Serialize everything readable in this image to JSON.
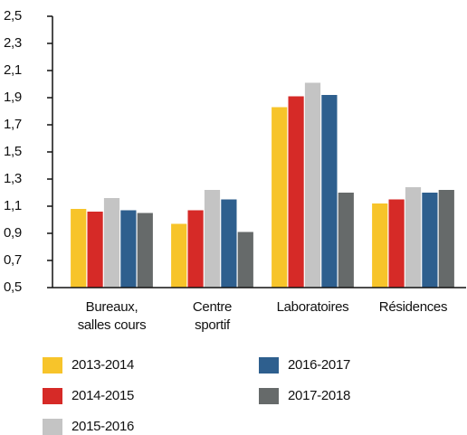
{
  "chart_data": {
    "type": "bar",
    "categories": [
      [
        "Bureaux,",
        "salles cours"
      ],
      [
        "Centre",
        "sportif"
      ],
      [
        "Laboratoires"
      ],
      [
        "Résidences"
      ]
    ],
    "series": [
      {
        "name": "2013-2014",
        "color": "#f7c42a",
        "values": [
          1.08,
          0.97,
          1.83,
          1.12
        ]
      },
      {
        "name": "2014-2015",
        "color": "#d62a27",
        "values": [
          1.06,
          1.07,
          1.91,
          1.15
        ]
      },
      {
        "name": "2015-2016",
        "color": "#c4c4c4",
        "values": [
          1.16,
          1.22,
          2.01,
          1.24
        ]
      },
      {
        "name": "2016-2017",
        "color": "#2e5f8e",
        "values": [
          1.07,
          1.15,
          1.92,
          1.2
        ]
      },
      {
        "name": "2017-2018",
        "color": "#666a6a",
        "values": [
          1.05,
          0.91,
          1.2,
          1.22
        ]
      }
    ],
    "ylim": [
      0.5,
      2.5
    ],
    "yticks": [
      {
        "value": 0.5,
        "label": "0,5"
      },
      {
        "value": 0.7,
        "label": "0,7"
      },
      {
        "value": 0.9,
        "label": "0,9"
      },
      {
        "value": 1.1,
        "label": "1,1"
      },
      {
        "value": 1.3,
        "label": "1,3"
      },
      {
        "value": 1.5,
        "label": "1,5"
      },
      {
        "value": 1.7,
        "label": "1,7"
      },
      {
        "value": 1.9,
        "label": "1,9"
      },
      {
        "value": 2.1,
        "label": "2,1"
      },
      {
        "value": 2.3,
        "label": "2,3"
      },
      {
        "value": 2.5,
        "label": "2,5"
      }
    ]
  }
}
